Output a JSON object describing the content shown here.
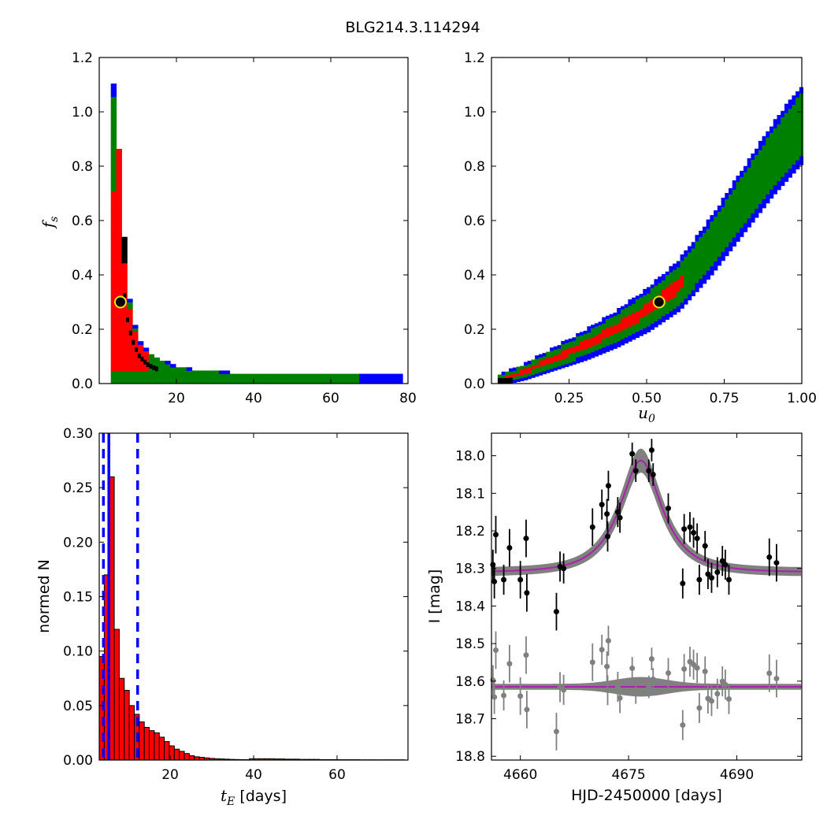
{
  "title": "BLG214.3.114294",
  "chart_data": [
    {
      "panel": "fs-vs-tE",
      "type": "heatmap",
      "xlabel": "",
      "ylabel": "f_s",
      "ylabel_main": "f",
      "ylabel_sub": "s",
      "xlim": [
        0,
        80
      ],
      "ylim": [
        0,
        1.2
      ],
      "xticks": [
        20,
        40,
        60,
        80
      ],
      "yticks": [
        0.0,
        0.2,
        0.4,
        0.6,
        0.8,
        1.0,
        1.2
      ],
      "contour_colors": {
        "3sigma": "#0000ff",
        "2sigma": "#008000",
        "1sigma": "#ff0000",
        "best": "#000000"
      },
      "best_fit": {
        "x": 5.5,
        "y": 0.3
      },
      "region_profile_x": [
        3,
        4,
        5,
        6,
        7,
        8,
        9,
        10,
        12,
        14,
        16,
        18,
        20,
        25,
        30,
        35,
        40,
        50,
        60,
        70,
        77
      ],
      "region_profile_y": [
        1.08,
        0.92,
        0.72,
        0.46,
        0.3,
        0.22,
        0.17,
        0.13,
        0.09,
        0.07,
        0.06,
        0.045,
        0.035,
        0.025,
        0.018,
        0.014,
        0.012,
        0.009,
        0.007,
        0.006,
        0.005
      ]
    },
    {
      "panel": "fs-vs-u0",
      "type": "heatmap",
      "xlabel": "u_0",
      "xlabel_main": "u",
      "xlabel_sub": "0",
      "ylabel": "",
      "xlim": [
        0,
        1.0
      ],
      "ylim": [
        0,
        1.2
      ],
      "xticks": [
        0.25,
        0.5,
        0.75,
        1.0
      ],
      "xtick_labels": [
        "0.25",
        "0.50",
        "0.75",
        "1.00"
      ],
      "yticks": [
        0.0,
        0.2,
        0.4,
        0.6,
        0.8,
        1.0,
        1.2
      ],
      "best_fit": {
        "x": 0.54,
        "y": 0.3
      },
      "band_u0": [
        0.02,
        0.1,
        0.2,
        0.3,
        0.4,
        0.5,
        0.6,
        0.7,
        0.8,
        0.9,
        1.0
      ],
      "band_center_fs": [
        0.01,
        0.04,
        0.09,
        0.14,
        0.2,
        0.27,
        0.36,
        0.5,
        0.66,
        0.82,
        0.96
      ]
    },
    {
      "panel": "tE-histogram",
      "type": "bar",
      "xlabel": "t_E [days]",
      "xlabel_main": "t",
      "xlabel_sub": "E",
      "xlabel_unit": " [days]",
      "ylabel": "normed N",
      "xlim": [
        3,
        77
      ],
      "ylim": [
        0,
        0.3
      ],
      "xticks": [
        20,
        40,
        60
      ],
      "yticks": [
        0.0,
        0.05,
        0.1,
        0.15,
        0.2,
        0.25,
        0.3
      ],
      "ytick_labels": [
        "0.00",
        "0.05",
        "0.10",
        "0.15",
        "0.20",
        "0.25",
        "0.30"
      ],
      "bin_width": 1.2,
      "bin_start": 3.0,
      "values": [
        0.095,
        0.17,
        0.26,
        0.12,
        0.075,
        0.064,
        0.05,
        0.042,
        0.035,
        0.03,
        0.027,
        0.025,
        0.021,
        0.017,
        0.013,
        0.01,
        0.008,
        0.006,
        0.004,
        0.003,
        0.0025,
        0.002,
        0.0015,
        0.0012,
        0.001,
        0.0008,
        0.0006,
        0.0005,
        0.0004,
        0.0004,
        0.0012,
        0.0012,
        0.0012,
        0.0012,
        0.0012,
        0.001,
        0.001,
        0.0008,
        0.0008,
        0.0008,
        0.0006,
        0.0006,
        0.0006,
        0.0006,
        0.0004,
        0.0004,
        0.0004,
        0.0004,
        0.0003,
        0.0003,
        0.0003,
        0.0003,
        0.0002,
        0.0002,
        0.0002,
        0.0002,
        0.0002,
        0.0002,
        0.0002,
        0.0002,
        0.0002
      ],
      "bar_color": "#ff0000",
      "median_line": 5.3,
      "interval_lines": [
        4.0,
        12.2
      ],
      "line_color": "#0000ff"
    },
    {
      "panel": "light-curve",
      "type": "scatter",
      "xlabel": "HJD-2450000 [days]",
      "ylabel": "I [mag]",
      "xlim": [
        4656,
        4699
      ],
      "ylim": [
        18.81,
        17.94
      ],
      "xticks": [
        4660,
        4675,
        4690
      ],
      "yticks": [
        18.0,
        18.1,
        18.2,
        18.3,
        18.4,
        18.5,
        18.6,
        18.7,
        18.8
      ],
      "ytick_labels": [
        "18.0",
        "18.1",
        "18.2",
        "18.3",
        "18.4",
        "18.5",
        "18.6",
        "18.7",
        "18.8"
      ],
      "model": {
        "t0": 4676.7,
        "tE": 5.4,
        "u0": 0.54,
        "fs": 0.3,
        "baseline": 18.31,
        "color": "#aa22aa"
      },
      "residual_offset": 18.615,
      "data": [
        {
          "t": 4656.2,
          "mag": 18.29,
          "err": 0.04
        },
        {
          "t": 4656.4,
          "mag": 18.335,
          "err": 0.045
        },
        {
          "t": 4656.6,
          "mag": 18.21,
          "err": 0.05
        },
        {
          "t": 4657.7,
          "mag": 18.33,
          "err": 0.04
        },
        {
          "t": 4658.5,
          "mag": 18.245,
          "err": 0.05
        },
        {
          "t": 4660.0,
          "mag": 18.33,
          "err": 0.05
        },
        {
          "t": 4660.8,
          "mag": 18.22,
          "err": 0.05
        },
        {
          "t": 4660.9,
          "mag": 18.365,
          "err": 0.05
        },
        {
          "t": 4665.0,
          "mag": 18.415,
          "err": 0.05
        },
        {
          "t": 4665.5,
          "mag": 18.295,
          "err": 0.04
        },
        {
          "t": 4666.0,
          "mag": 18.3,
          "err": 0.04
        },
        {
          "t": 4670.0,
          "mag": 18.19,
          "err": 0.05
        },
        {
          "t": 4671.3,
          "mag": 18.13,
          "err": 0.04
        },
        {
          "t": 4672.0,
          "mag": 18.155,
          "err": 0.04
        },
        {
          "t": 4672.1,
          "mag": 18.215,
          "err": 0.04
        },
        {
          "t": 4672.2,
          "mag": 18.08,
          "err": 0.04
        },
        {
          "t": 4673.5,
          "mag": 18.15,
          "err": 0.04
        },
        {
          "t": 4673.8,
          "mag": 18.165,
          "err": 0.04
        },
        {
          "t": 4675.5,
          "mag": 17.995,
          "err": 0.03
        },
        {
          "t": 4676.0,
          "mag": 18.04,
          "err": 0.03
        },
        {
          "t": 4677.8,
          "mag": 18.04,
          "err": 0.03
        },
        {
          "t": 4678.2,
          "mag": 17.985,
          "err": 0.03
        },
        {
          "t": 4678.4,
          "mag": 18.05,
          "err": 0.03
        },
        {
          "t": 4680.5,
          "mag": 18.14,
          "err": 0.04
        },
        {
          "t": 4682.5,
          "mag": 18.34,
          "err": 0.04
        },
        {
          "t": 4682.7,
          "mag": 18.195,
          "err": 0.04
        },
        {
          "t": 4683.5,
          "mag": 18.19,
          "err": 0.04
        },
        {
          "t": 4684.0,
          "mag": 18.205,
          "err": 0.04
        },
        {
          "t": 4684.5,
          "mag": 18.22,
          "err": 0.04
        },
        {
          "t": 4684.8,
          "mag": 18.33,
          "err": 0.04
        },
        {
          "t": 4685.6,
          "mag": 18.24,
          "err": 0.04
        },
        {
          "t": 4686.0,
          "mag": 18.315,
          "err": 0.04
        },
        {
          "t": 4686.5,
          "mag": 18.325,
          "err": 0.04
        },
        {
          "t": 4687.3,
          "mag": 18.31,
          "err": 0.04
        },
        {
          "t": 4688.0,
          "mag": 18.28,
          "err": 0.04
        },
        {
          "t": 4688.4,
          "mag": 18.29,
          "err": 0.04
        },
        {
          "t": 4688.9,
          "mag": 18.33,
          "err": 0.04
        },
        {
          "t": 4694.5,
          "mag": 18.27,
          "err": 0.05
        },
        {
          "t": 4695.5,
          "mag": 18.285,
          "err": 0.05
        }
      ],
      "data_color": "#000000",
      "residual_color": "#808080",
      "band_color": "#808080"
    }
  ]
}
